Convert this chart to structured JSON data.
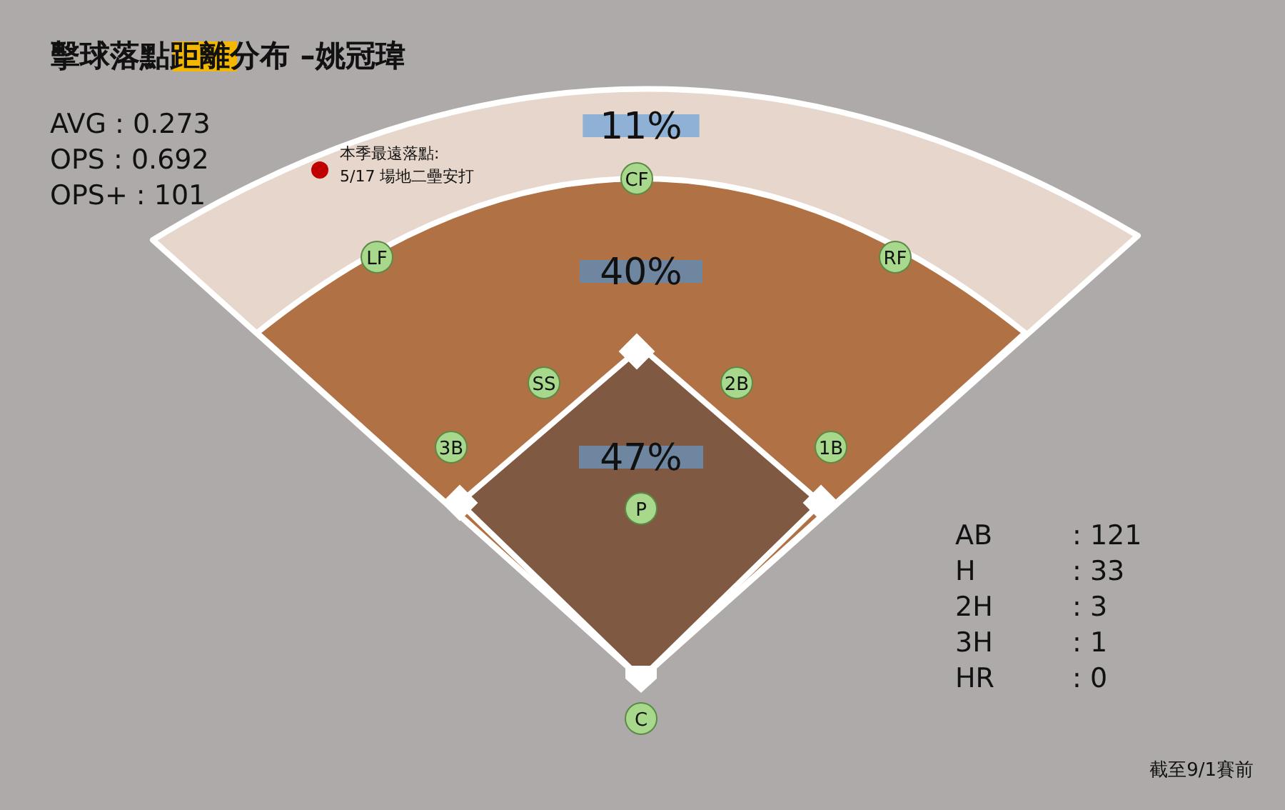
{
  "chart_data": {
    "type": "other",
    "title": "擊球落點距離分布 –姚冠瑋",
    "categories": [
      null,
      null,
      null
    ],
    "values": [
      11,
      40,
      47
    ],
    "colors": [
      "#e6d6cc",
      "#b07145",
      "#7f5942"
    ],
    "value_labels": [
      "11%",
      "40%",
      "47%"
    ],
    "annotations": [
      "CF",
      "LF",
      "RF",
      "SS",
      "2B",
      "3B",
      "1B",
      "P",
      "C",
      "AVG : 0.273",
      "OPS : 0.692",
      "OPS+ : 101",
      "AB : 121",
      "H : 33",
      "2H : 3",
      "3H : 1",
      "HR : 0",
      "本季最遠落點:",
      "5/17 場地二壘安打",
      "截至9/1賽前"
    ]
  }
}
